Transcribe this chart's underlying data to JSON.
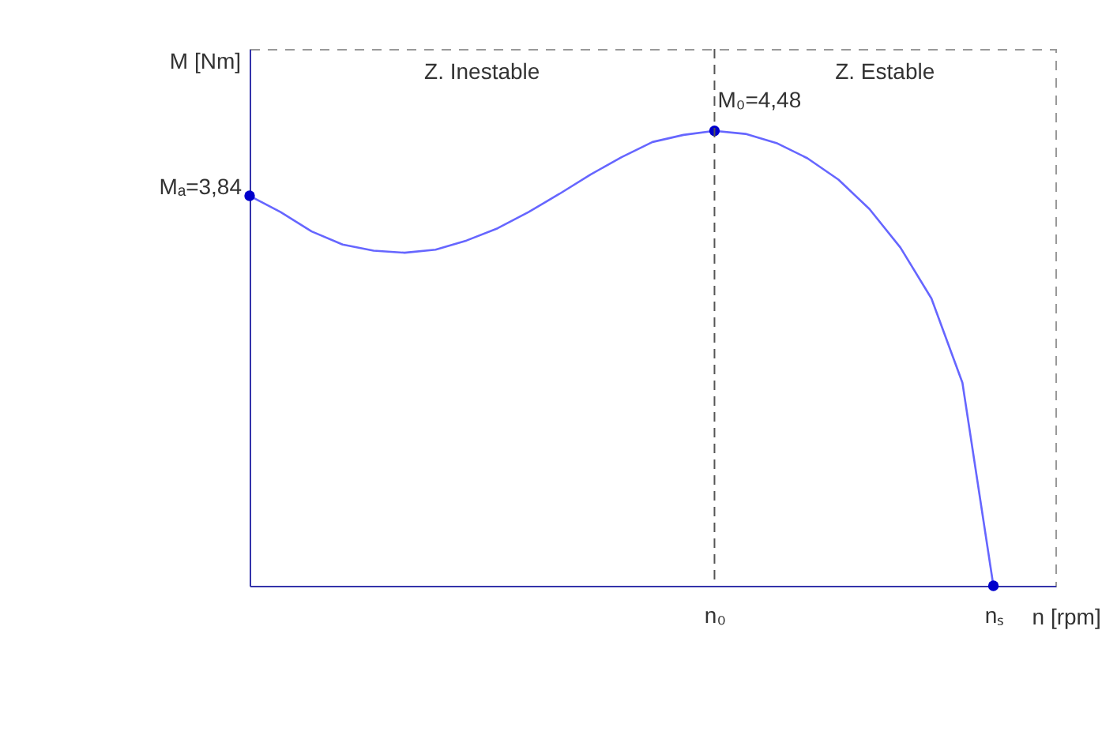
{
  "chart_data": {
    "type": "line",
    "xlabel": "n [rpm]",
    "ylabel": "M [Nm]",
    "annotations": [
      "Z. Inestable",
      "Z. Estable"
    ],
    "categories": [
      null,
      null,
      null,
      null,
      null,
      null,
      null,
      null,
      null,
      null,
      null,
      null,
      null,
      null,
      null,
      "n₀",
      null,
      null,
      null,
      null,
      null,
      null,
      null,
      null,
      "nₛ",
      null,
      null
    ],
    "tick_labels": "x",
    "grid": false,
    "ref_lines": [
      {
        "axis": "x",
        "value": "n₀",
        "label": null,
        "line_style": "dashed",
        "color": "#555555"
      }
    ],
    "series": [
      {
        "color": "#6666ff",
        "marker": "none",
        "values": [
          3.84,
          3.68,
          3.49,
          3.36,
          3.3,
          3.28,
          3.31,
          3.4,
          3.52,
          3.68,
          3.86,
          4.05,
          4.22,
          4.37,
          4.44,
          4.48,
          4.45,
          4.36,
          4.21,
          4.0,
          3.71,
          3.33,
          2.83,
          2.0,
          0,
          null,
          null
        ]
      },
      {
        "type": "scatter",
        "color": "#0000cc",
        "marker": "circle",
        "values": [
          3.84,
          null,
          null,
          null,
          null,
          null,
          null,
          null,
          null,
          null,
          null,
          null,
          null,
          null,
          null,
          4.48,
          null,
          null,
          null,
          null,
          null,
          null,
          null,
          null,
          0,
          null,
          null
        ],
        "value_labels": [
          "Mₐ=3,84",
          null,
          null,
          null,
          null,
          null,
          null,
          null,
          null,
          null,
          null,
          null,
          null,
          null,
          null,
          "M₀=4,48",
          null,
          null,
          null,
          null,
          null,
          null,
          null,
          null,
          null,
          null,
          null
        ]
      }
    ]
  }
}
